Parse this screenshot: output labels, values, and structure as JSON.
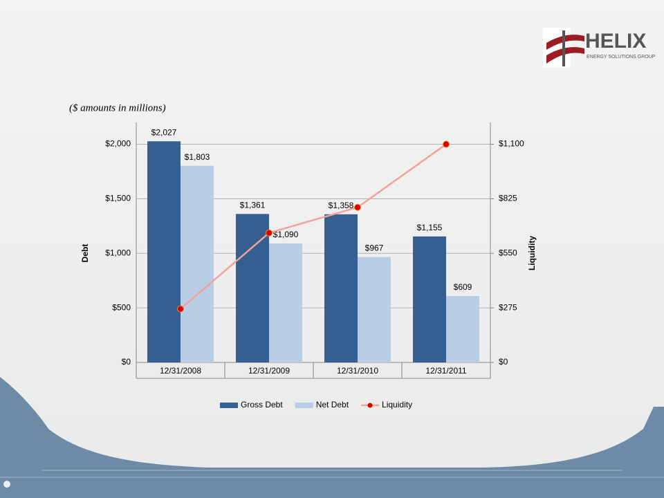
{
  "logo": {
    "name": "HELIX",
    "tagline": "ENERGY SOLUTIONS GROUP"
  },
  "chart_data": {
    "type": "bar",
    "subtitle": "($ amounts in millions)",
    "categories": [
      "12/31/2008",
      "12/31/2009",
      "12/31/2010",
      "12/31/2011"
    ],
    "series": [
      {
        "name": "Gross Debt",
        "type": "bar",
        "color": "#355e91",
        "values": [
          2027,
          1361,
          1358,
          1155
        ],
        "value_labels": [
          "$2,027",
          "$1,361",
          "$1,358",
          "$1,155"
        ]
      },
      {
        "name": "Net Debt",
        "type": "bar",
        "color": "#b9cde5",
        "values": [
          1803,
          1090,
          967,
          609
        ],
        "value_labels": [
          "$1,803",
          "$1,090",
          "$967",
          "$609"
        ]
      },
      {
        "name": "Liquidity",
        "type": "line",
        "axis": "y2",
        "color": "#f2a19b",
        "marker_color": "#d40000",
        "values": [
          270,
          653,
          782,
          1100
        ]
      }
    ],
    "ylabel": "Debt",
    "y2label": "Liquidity",
    "ylim": [
      0,
      2200
    ],
    "yticks": [
      {
        "value": 0,
        "label": "$0"
      },
      {
        "value": 500,
        "label": "$500"
      },
      {
        "value": 1000,
        "label": "$1,000"
      },
      {
        "value": 1500,
        "label": "$1,500"
      },
      {
        "value": 2000,
        "label": "$2,000"
      }
    ],
    "y2lim": [
      0,
      1210
    ],
    "y2ticks": [
      {
        "value": 0,
        "label": "$0"
      },
      {
        "value": 275,
        "label": "$275"
      },
      {
        "value": 550,
        "label": "$550"
      },
      {
        "value": 825,
        "label": "$825"
      },
      {
        "value": 1100,
        "label": "$1,100"
      }
    ],
    "grid": true,
    "legend": "bottom"
  }
}
